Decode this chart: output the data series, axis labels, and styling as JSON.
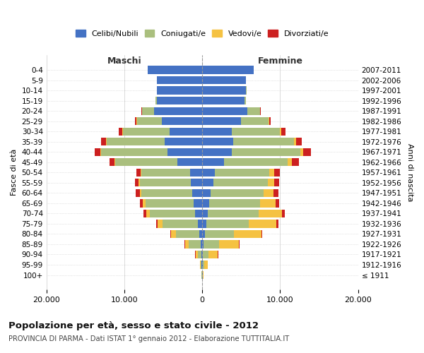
{
  "age_groups": [
    "0-4",
    "5-9",
    "10-14",
    "15-19",
    "20-24",
    "25-29",
    "30-34",
    "35-39",
    "40-44",
    "45-49",
    "50-54",
    "55-59",
    "60-64",
    "65-69",
    "70-74",
    "75-79",
    "80-84",
    "85-89",
    "90-94",
    "95-99",
    "100+"
  ],
  "birth_years": [
    "2007-2011",
    "2002-2006",
    "1997-2001",
    "1992-1996",
    "1987-1991",
    "1982-1986",
    "1977-1981",
    "1972-1976",
    "1967-1971",
    "1962-1966",
    "1957-1961",
    "1952-1956",
    "1947-1951",
    "1942-1946",
    "1937-1941",
    "1932-1936",
    "1927-1931",
    "1922-1926",
    "1917-1921",
    "1912-1916",
    "≤ 1911"
  ],
  "males": {
    "celibi": [
      7000,
      5800,
      5800,
      5800,
      6200,
      5200,
      4200,
      4800,
      4500,
      3200,
      1600,
      1500,
      1300,
      1100,
      900,
      600,
      350,
      200,
      100,
      80,
      50
    ],
    "coniugati": [
      20,
      30,
      50,
      200,
      1500,
      3200,
      6000,
      7500,
      8500,
      8000,
      6200,
      6500,
      6500,
      6200,
      5800,
      4500,
      3000,
      1500,
      500,
      150,
      50
    ],
    "vedovi": [
      5,
      5,
      5,
      5,
      10,
      30,
      50,
      80,
      100,
      100,
      100,
      150,
      200,
      300,
      500,
      600,
      700,
      500,
      250,
      80,
      20
    ],
    "divorziati": [
      5,
      5,
      5,
      20,
      80,
      200,
      450,
      600,
      700,
      600,
      550,
      500,
      500,
      400,
      350,
      200,
      80,
      50,
      30,
      20,
      5
    ]
  },
  "females": {
    "nubili": [
      6600,
      5600,
      5600,
      5400,
      5800,
      5000,
      3800,
      4000,
      3800,
      2800,
      1600,
      1400,
      1100,
      900,
      700,
      500,
      300,
      200,
      100,
      80,
      50
    ],
    "coniugate": [
      20,
      30,
      60,
      200,
      1600,
      3500,
      6200,
      7800,
      8800,
      8200,
      7000,
      7000,
      6800,
      6500,
      6500,
      5500,
      3800,
      2000,
      700,
      200,
      50
    ],
    "vedove": [
      5,
      5,
      5,
      10,
      20,
      60,
      100,
      200,
      350,
      500,
      600,
      800,
      1200,
      2000,
      3000,
      3500,
      3500,
      2500,
      1200,
      400,
      100
    ],
    "divorziate": [
      5,
      5,
      5,
      20,
      80,
      200,
      550,
      800,
      1000,
      900,
      800,
      700,
      700,
      500,
      400,
      250,
      100,
      60,
      30,
      20,
      5
    ]
  },
  "colors": {
    "celibi": "#4472C4",
    "coniugati": "#AABF7E",
    "vedovi": "#F5C242",
    "divorziati": "#CC2020"
  },
  "xlim": 20000,
  "xticks": [
    -20000,
    -10000,
    0,
    10000,
    20000
  ],
  "xticklabels": [
    "20.000",
    "10.000",
    "0",
    "10.000",
    "20.000"
  ],
  "title": "Popolazione per età, sesso e stato civile - 2012",
  "subtitle": "PROVINCIA DI PARMA - Dati ISTAT 1° gennaio 2012 - Elaborazione TUTTITALIA.IT",
  "ylabel_left": "Fasce di età",
  "ylabel_right": "Anni di nascita",
  "label_maschi": "Maschi",
  "label_femmine": "Femmine",
  "legend_labels": [
    "Celibi/Nubili",
    "Coniugati/e",
    "Vedovi/e",
    "Divorziati/e"
  ],
  "background_color": "#ffffff",
  "grid_color": "#cccccc"
}
